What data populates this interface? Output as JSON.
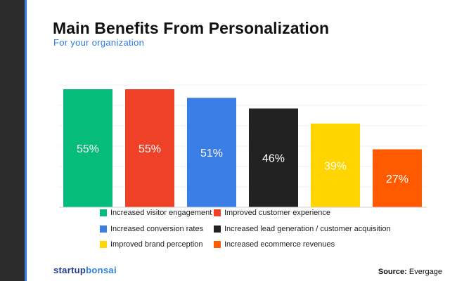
{
  "chart_data": {
    "type": "bar",
    "title": "Main Benefits From Personalization",
    "subtitle": "For your organization",
    "categories": [
      "Increased visitor engagement",
      "Improved customer experience",
      "Increased conversion rates",
      "Increased lead generation / customer acquisition",
      "Improved brand perception",
      "Increased ecommerce revenues"
    ],
    "values": [
      55,
      55,
      51,
      46,
      39,
      27
    ],
    "value_labels": [
      "55%",
      "55%",
      "51%",
      "46%",
      "39%",
      "27%"
    ],
    "colors": [
      "#06bc7c",
      "#ef4128",
      "#3a7ee5",
      "#222222",
      "#ffd400",
      "#ff5a00"
    ],
    "ylim": [
      0,
      55
    ],
    "unit": "%",
    "xlabel": "",
    "ylabel": "",
    "grid": true,
    "legend_position": "bottom"
  },
  "brand": {
    "part1": "startup",
    "part2": "bonsai"
  },
  "source": {
    "label": "Source:",
    "value": "Evergage"
  }
}
